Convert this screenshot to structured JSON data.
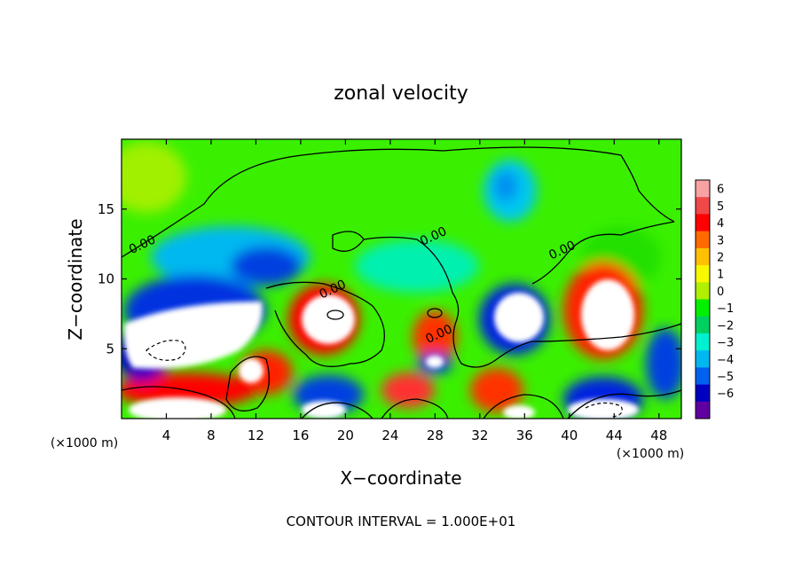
{
  "chart_data": {
    "type": "heatmap",
    "title": "zonal velocity",
    "xlabel": "X−coordinate",
    "ylabel": "Z−coordinate",
    "x_unit_label": "(×1000 m)",
    "x_unit_label_right": "(×1000 m)",
    "xlim": [
      0,
      50
    ],
    "ylim": [
      0,
      20
    ],
    "xticks": [
      4,
      8,
      12,
      16,
      20,
      24,
      28,
      32,
      36,
      40,
      44,
      48
    ],
    "yticks": [
      5,
      10,
      15
    ],
    "footer": "CONTOUR INTERVAL = 1.000E+01",
    "contour_labels": [
      {
        "text": "0.00",
        "x": 2,
        "y": 12.2
      },
      {
        "text": "0.00",
        "x": 19,
        "y": 9.0
      },
      {
        "text": "0.00",
        "x": 28,
        "y": 12.8
      },
      {
        "text": "0.00",
        "x": 28.5,
        "y": 5.8
      },
      {
        "text": "0.00",
        "x": 39.5,
        "y": 11.8
      }
    ],
    "colorbar": {
      "ticks": [
        6,
        5,
        4,
        3,
        2,
        1,
        0,
        -1,
        -2,
        -3,
        -4,
        -5,
        -6
      ],
      "tick_labels": [
        "6",
        "5",
        "4",
        "3",
        "2",
        "1",
        "0",
        "−1",
        "−2",
        "−3",
        "−4",
        "−5",
        "−6"
      ],
      "colors": [
        "#f7a3a3",
        "#f04848",
        "#ff0000",
        "#ff6a00",
        "#ffc000",
        "#f8f800",
        "#b0f000",
        "#00f000",
        "#00d060",
        "#00f0d0",
        "#00b8f0",
        "#0060f0",
        "#0000c0",
        "#6000a0"
      ]
    }
  }
}
